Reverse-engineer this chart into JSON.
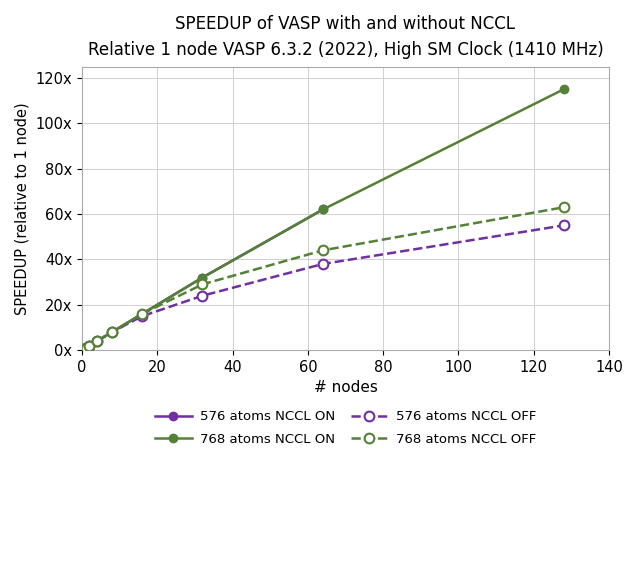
{
  "title": "SPEEDUP of VASP with and without NCCL",
  "subtitle": "Relative 1 node VASP 6.3.2 (2022), High SM Clock (1410 MHz)",
  "xlabel": "# nodes",
  "ylabel": "SPEEDUP (relative to 1 node)",
  "nodes_on": [
    1,
    2,
    4,
    8,
    16,
    32,
    64
  ],
  "nodes_768_on": [
    1,
    2,
    4,
    8,
    16,
    32,
    64,
    128
  ],
  "nodes_off": [
    1,
    2,
    4,
    8,
    16,
    32,
    64,
    128
  ],
  "s576_nccl_on": [
    1,
    2,
    4,
    8,
    16,
    32,
    62
  ],
  "s768_nccl_on": [
    1,
    2,
    4,
    8,
    16,
    32,
    62,
    115
  ],
  "s576_nccl_off": [
    1,
    2,
    4,
    8,
    15,
    24,
    38,
    55
  ],
  "s768_nccl_off": [
    1,
    2,
    4,
    8,
    16,
    29,
    44,
    63
  ],
  "color_576": "#7030A0",
  "color_768": "#538135",
  "yticks": [
    0,
    20,
    40,
    60,
    80,
    100,
    120
  ],
  "ytick_labels": [
    "0x",
    "20x",
    "40x",
    "60x",
    "80x",
    "100x",
    "120x"
  ],
  "xticks": [
    0,
    20,
    40,
    60,
    80,
    100,
    120,
    140
  ],
  "xlim": [
    0,
    140
  ],
  "ylim": [
    0,
    125
  ],
  "bg_color": "#ffffff",
  "grid_color": "#d0d0d0",
  "legend_labels": [
    "576 atoms NCCL ON",
    "768 atoms NCCL ON",
    "576 atoms NCCL OFF",
    "768 atoms NCCL OFF"
  ]
}
